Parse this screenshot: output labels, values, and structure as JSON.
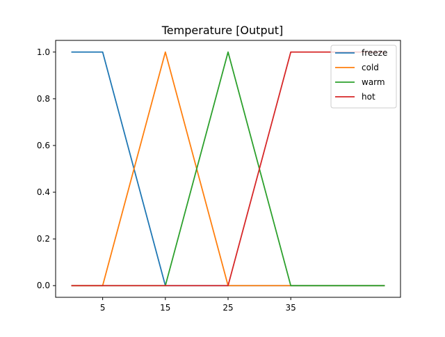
{
  "chart_data": {
    "type": "line",
    "title": "Temperature [Output]",
    "xlabel": "",
    "ylabel": "",
    "x_ticks": [
      5,
      15,
      25,
      35
    ],
    "y_ticks": [
      0.0,
      0.2,
      0.4,
      0.6,
      0.8,
      1.0
    ],
    "y_tick_labels": [
      "0.0",
      "0.2",
      "0.4",
      "0.6",
      "0.8",
      "1.0"
    ],
    "xlim": [
      -2.5,
      52.5
    ],
    "ylim": [
      -0.05,
      1.05
    ],
    "grid": false,
    "legend_position": "top-right",
    "series": [
      {
        "name": "freeze",
        "color": "#1f77b4",
        "points": [
          [
            0,
            1
          ],
          [
            5,
            1
          ],
          [
            15,
            0
          ],
          [
            50,
            0
          ]
        ]
      },
      {
        "name": "cold",
        "color": "#ff7f0e",
        "points": [
          [
            0,
            0
          ],
          [
            5,
            0
          ],
          [
            15,
            1
          ],
          [
            25,
            0
          ],
          [
            50,
            0
          ]
        ]
      },
      {
        "name": "warm",
        "color": "#2ca02c",
        "points": [
          [
            0,
            0
          ],
          [
            15,
            0
          ],
          [
            25,
            1
          ],
          [
            35,
            0
          ],
          [
            50,
            0
          ]
        ]
      },
      {
        "name": "hot",
        "color": "#d62728",
        "points": [
          [
            0,
            0
          ],
          [
            25,
            0
          ],
          [
            35,
            1
          ],
          [
            50,
            1
          ]
        ]
      }
    ]
  }
}
